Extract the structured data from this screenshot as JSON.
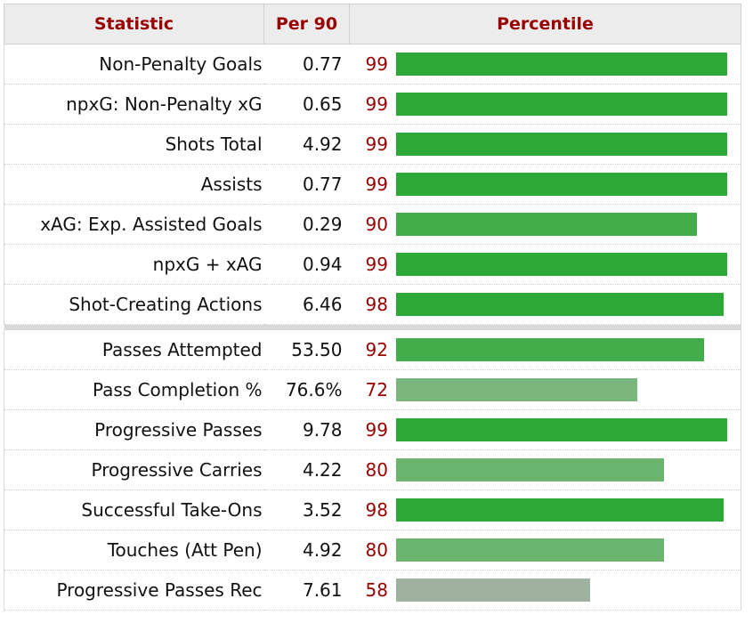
{
  "chart_data": {
    "type": "table",
    "columns": [
      "Statistic",
      "Per 90",
      "Percentile"
    ],
    "groups": [
      [
        {
          "statistic": "Non-Penalty Goals",
          "per90": "0.77",
          "percentile": 99
        },
        {
          "statistic": "npxG: Non-Penalty xG",
          "per90": "0.65",
          "percentile": 99
        },
        {
          "statistic": "Shots Total",
          "per90": "4.92",
          "percentile": 99
        },
        {
          "statistic": "Assists",
          "per90": "0.77",
          "percentile": 99
        },
        {
          "statistic": "xAG: Exp. Assisted Goals",
          "per90": "0.29",
          "percentile": 90
        },
        {
          "statistic": "npxG + xAG",
          "per90": "0.94",
          "percentile": 99
        },
        {
          "statistic": "Shot-Creating Actions",
          "per90": "6.46",
          "percentile": 98
        }
      ],
      [
        {
          "statistic": "Passes Attempted",
          "per90": "53.50",
          "percentile": 92
        },
        {
          "statistic": "Pass Completion %",
          "per90": "76.6%",
          "percentile": 72
        },
        {
          "statistic": "Progressive Passes",
          "per90": "9.78",
          "percentile": 99
        },
        {
          "statistic": "Progressive Carries",
          "per90": "4.22",
          "percentile": 80
        },
        {
          "statistic": "Successful Take-Ons",
          "per90": "3.52",
          "percentile": 98
        },
        {
          "statistic": "Touches (Att Pen)",
          "per90": "4.92",
          "percentile": 80
        },
        {
          "statistic": "Progressive Passes Rec",
          "per90": "7.61",
          "percentile": 58
        }
      ]
    ],
    "percentile_range": [
      0,
      100
    ],
    "colors": {
      "header_text": "#990000",
      "percentile_text": "#990000",
      "bar_high": "#2ea836",
      "bar_mid": "#44ad4b",
      "bar_low": "#7ab57d",
      "bar_lowest": "#9fb19f"
    }
  }
}
